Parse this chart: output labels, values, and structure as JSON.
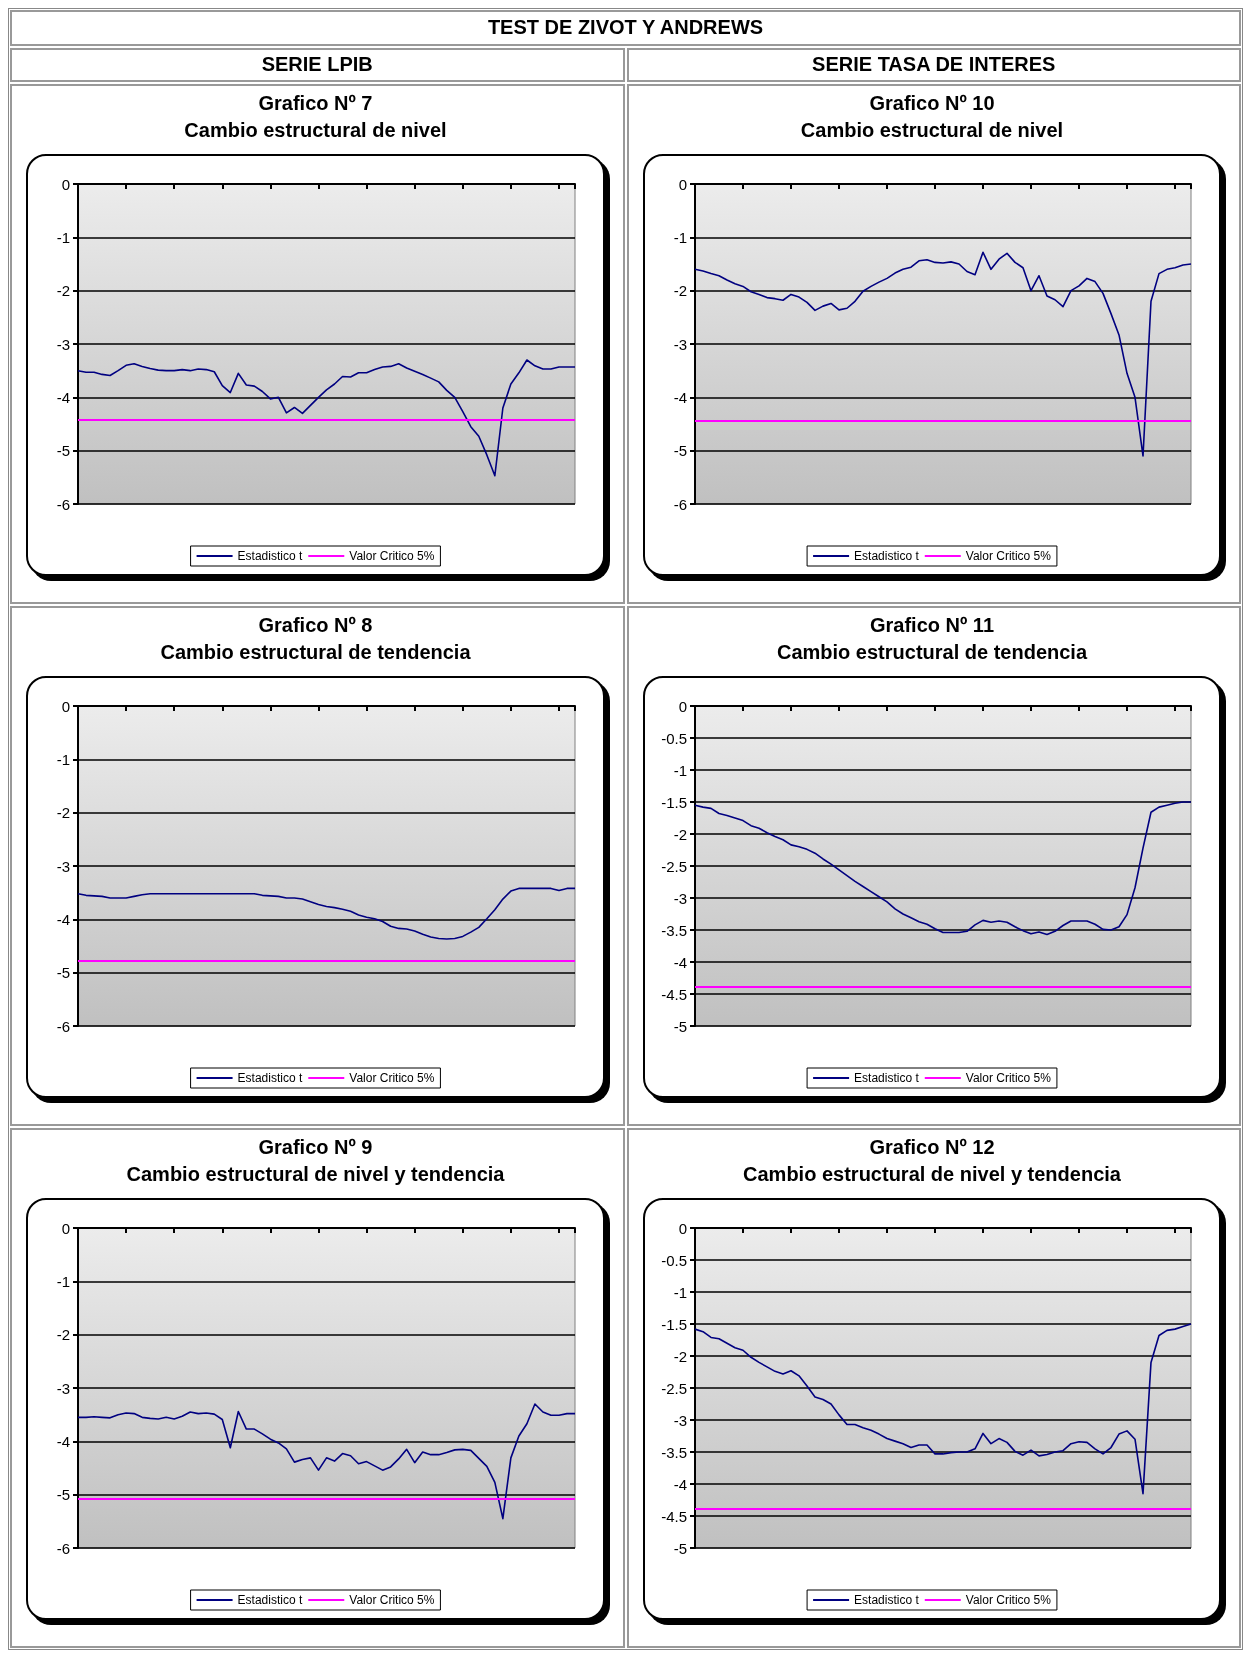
{
  "chart_data": [
    {
      "type": "line",
      "title": "Grafico Nº 7",
      "subtitle": "Cambio estructural de nivel",
      "annotations": [
        "TEST DE ZIVOT Y ANDREWS",
        "SERIE LPIB"
      ],
      "categories": [
        null,
        null,
        null,
        null,
        null,
        null,
        null,
        null,
        null,
        null,
        null,
        null,
        null,
        null,
        null,
        null,
        null,
        null,
        null,
        null,
        null,
        null,
        null,
        null,
        null,
        null,
        null,
        null,
        null,
        null,
        null,
        null,
        null,
        null,
        null,
        null,
        null,
        null,
        null,
        null,
        null,
        null,
        null,
        null,
        null,
        null,
        null,
        null,
        null,
        null,
        null,
        null,
        null,
        null,
        null,
        null,
        null,
        null,
        null,
        null,
        null,
        null,
        null
      ],
      "series": [
        {
          "name": "Estadistico t",
          "color": "#000080",
          "values": [
            -3.5,
            -3.53,
            -3.53,
            -3.57,
            -3.59,
            -3.5,
            -3.4,
            -3.37,
            -3.42,
            -3.46,
            -3.49,
            -3.5,
            -3.5,
            -3.48,
            -3.5,
            -3.47,
            -3.48,
            -3.52,
            -3.78,
            -3.91,
            -3.55,
            -3.77,
            -3.79,
            -3.89,
            -4.03,
            -4.0,
            -4.29,
            -4.19,
            -4.3,
            -4.15,
            -4.0,
            -3.86,
            -3.75,
            -3.61,
            -3.62,
            -3.54,
            -3.54,
            -3.48,
            -3.43,
            -3.42,
            -3.37,
            -3.45,
            -3.51,
            -3.57,
            -3.64,
            -3.71,
            -3.87,
            -4.0,
            -4.27,
            -4.55,
            -4.73,
            -5.08,
            -5.47,
            -4.2,
            -3.75,
            -3.54,
            -3.3,
            -3.41,
            -3.47,
            -3.47,
            -3.43,
            -3.43,
            -3.43
          ]
        }
      ],
      "ref_lines": [
        {
          "axis": "y",
          "value": -4.42,
          "label": "Valor Critico 5%",
          "color": "#ff00ff"
        }
      ],
      "ylim": [
        -6,
        0
      ],
      "yticks": [
        -6,
        -5,
        -4,
        -3,
        -2,
        -1,
        0
      ],
      "grid": "y",
      "legend": "bottom",
      "tick_labels": "y"
    },
    {
      "type": "line",
      "title": "Grafico Nº 10",
      "subtitle": "Cambio estructural de nivel",
      "annotations": [
        "SERIE TASA DE INTERES"
      ],
      "categories": [
        null,
        null,
        null,
        null,
        null,
        null,
        null,
        null,
        null,
        null,
        null,
        null,
        null,
        null,
        null,
        null,
        null,
        null,
        null,
        null,
        null,
        null,
        null,
        null,
        null,
        null,
        null,
        null,
        null,
        null,
        null,
        null,
        null,
        null,
        null,
        null,
        null,
        null,
        null,
        null,
        null,
        null,
        null,
        null,
        null,
        null,
        null,
        null,
        null,
        null,
        null,
        null,
        null,
        null,
        null,
        null,
        null,
        null,
        null,
        null,
        null,
        null,
        null
      ],
      "series": [
        {
          "name": "Estadistico t",
          "color": "#000080",
          "values": [
            -1.6,
            -1.63,
            -1.68,
            -1.72,
            -1.8,
            -1.87,
            -1.92,
            -2.02,
            -2.07,
            -2.13,
            -2.15,
            -2.18,
            -2.07,
            -2.12,
            -2.22,
            -2.37,
            -2.29,
            -2.24,
            -2.36,
            -2.33,
            -2.2,
            -2.01,
            -1.92,
            -1.84,
            -1.77,
            -1.67,
            -1.6,
            -1.56,
            -1.44,
            -1.42,
            -1.47,
            -1.48,
            -1.46,
            -1.5,
            -1.64,
            -1.7,
            -1.28,
            -1.6,
            -1.41,
            -1.3,
            -1.47,
            -1.57,
            -2.0,
            -1.72,
            -2.1,
            -2.17,
            -2.3,
            -2.0,
            -1.91,
            -1.77,
            -1.83,
            -2.05,
            -2.43,
            -2.83,
            -3.55,
            -4.0,
            -5.1,
            -2.2,
            -1.68,
            -1.6,
            -1.57,
            -1.52,
            -1.5
          ]
        }
      ],
      "ref_lines": [
        {
          "axis": "y",
          "value": -4.44,
          "label": "Valor Critico 5%",
          "color": "#ff00ff"
        }
      ],
      "ylim": [
        -6,
        0
      ],
      "yticks": [
        -6,
        -5,
        -4,
        -3,
        -2,
        -1,
        0
      ],
      "grid": "y",
      "legend": "bottom",
      "tick_labels": "y"
    },
    {
      "type": "line",
      "title": "Grafico Nº 8",
      "subtitle": "Cambio estructural de tendencia",
      "categories": [
        null,
        null,
        null,
        null,
        null,
        null,
        null,
        null,
        null,
        null,
        null,
        null,
        null,
        null,
        null,
        null,
        null,
        null,
        null,
        null,
        null,
        null,
        null,
        null,
        null,
        null,
        null,
        null,
        null,
        null,
        null,
        null,
        null,
        null,
        null,
        null,
        null,
        null,
        null,
        null,
        null,
        null,
        null,
        null,
        null,
        null,
        null,
        null,
        null,
        null,
        null,
        null,
        null,
        null,
        null,
        null,
        null,
        null,
        null,
        null,
        null,
        null,
        null
      ],
      "series": [
        {
          "name": "Estadistico t",
          "color": "#000080",
          "values": [
            -3.52,
            -3.55,
            -3.56,
            -3.57,
            -3.6,
            -3.6,
            -3.6,
            -3.57,
            -3.54,
            -3.52,
            -3.52,
            -3.52,
            -3.52,
            -3.52,
            -3.52,
            -3.52,
            -3.52,
            -3.52,
            -3.52,
            -3.52,
            -3.52,
            -3.52,
            -3.52,
            -3.55,
            -3.56,
            -3.57,
            -3.6,
            -3.6,
            -3.62,
            -3.67,
            -3.72,
            -3.76,
            -3.78,
            -3.81,
            -3.85,
            -3.92,
            -3.96,
            -3.99,
            -4.04,
            -4.13,
            -4.17,
            -4.18,
            -4.22,
            -4.28,
            -4.33,
            -4.36,
            -4.37,
            -4.36,
            -4.32,
            -4.24,
            -4.15,
            -3.99,
            -3.82,
            -3.62,
            -3.47,
            -3.42,
            -3.42,
            -3.42,
            -3.42,
            -3.42,
            -3.46,
            -3.42,
            -3.42
          ]
        }
      ],
      "ref_lines": [
        {
          "axis": "y",
          "value": -4.78,
          "label": "Valor Critico 5%",
          "color": "#ff00ff"
        }
      ],
      "ylim": [
        -6,
        0
      ],
      "yticks": [
        -6,
        -5,
        -4,
        -3,
        -2,
        -1,
        0
      ],
      "grid": "y",
      "legend": "bottom",
      "tick_labels": "y"
    },
    {
      "type": "line",
      "title": "Grafico Nº 11",
      "subtitle": "Cambio estructural de tendencia",
      "categories": [
        null,
        null,
        null,
        null,
        null,
        null,
        null,
        null,
        null,
        null,
        null,
        null,
        null,
        null,
        null,
        null,
        null,
        null,
        null,
        null,
        null,
        null,
        null,
        null,
        null,
        null,
        null,
        null,
        null,
        null,
        null,
        null,
        null,
        null,
        null,
        null,
        null,
        null,
        null,
        null,
        null,
        null,
        null,
        null,
        null,
        null,
        null,
        null,
        null,
        null,
        null,
        null,
        null,
        null,
        null,
        null,
        null,
        null,
        null,
        null,
        null,
        null,
        null
      ],
      "series": [
        {
          "name": "Estadistico t",
          "color": "#000080",
          "values": [
            -1.55,
            -1.58,
            -1.6,
            -1.68,
            -1.71,
            -1.75,
            -1.79,
            -1.87,
            -1.91,
            -1.98,
            -2.04,
            -2.09,
            -2.17,
            -2.2,
            -2.24,
            -2.3,
            -2.39,
            -2.47,
            -2.56,
            -2.65,
            -2.74,
            -2.82,
            -2.9,
            -2.98,
            -3.06,
            -3.17,
            -3.25,
            -3.31,
            -3.37,
            -3.41,
            -3.48,
            -3.54,
            -3.54,
            -3.54,
            -3.52,
            -3.42,
            -3.35,
            -3.38,
            -3.36,
            -3.38,
            -3.45,
            -3.51,
            -3.56,
            -3.53,
            -3.57,
            -3.52,
            -3.43,
            -3.36,
            -3.36,
            -3.36,
            -3.41,
            -3.49,
            -3.5,
            -3.45,
            -3.26,
            -2.84,
            -2.22,
            -1.66,
            -1.58,
            -1.55,
            -1.52,
            -1.5,
            -1.5
          ]
        }
      ],
      "ref_lines": [
        {
          "axis": "y",
          "value": -4.38,
          "label": "Valor Critico 5%",
          "color": "#ff00ff"
        }
      ],
      "ylim": [
        -5,
        0
      ],
      "yticks": [
        -5,
        -4.5,
        -4,
        -3.5,
        -3,
        -2.5,
        -2,
        -1.5,
        -1,
        -0.5,
        0
      ],
      "grid": "y",
      "legend": "bottom",
      "tick_labels": "y"
    },
    {
      "type": "line",
      "title": "Grafico Nº 9",
      "subtitle": "Cambio estructural de nivel y tendencia",
      "categories": [
        null,
        null,
        null,
        null,
        null,
        null,
        null,
        null,
        null,
        null,
        null,
        null,
        null,
        null,
        null,
        null,
        null,
        null,
        null,
        null,
        null,
        null,
        null,
        null,
        null,
        null,
        null,
        null,
        null,
        null,
        null,
        null,
        null,
        null,
        null,
        null,
        null,
        null,
        null,
        null,
        null,
        null,
        null,
        null,
        null,
        null,
        null,
        null,
        null,
        null,
        null,
        null,
        null,
        null,
        null,
        null,
        null,
        null,
        null,
        null,
        null,
        null,
        null
      ],
      "series": [
        {
          "name": "Estadistico t",
          "color": "#000080",
          "values": [
            -3.55,
            -3.55,
            -3.54,
            -3.55,
            -3.56,
            -3.5,
            -3.47,
            -3.48,
            -3.55,
            -3.57,
            -3.58,
            -3.55,
            -3.58,
            -3.53,
            -3.45,
            -3.48,
            -3.47,
            -3.49,
            -3.59,
            -4.12,
            -3.44,
            -3.77,
            -3.77,
            -3.86,
            -3.96,
            -4.03,
            -4.14,
            -4.39,
            -4.34,
            -4.31,
            -4.54,
            -4.31,
            -4.37,
            -4.23,
            -4.27,
            -4.42,
            -4.38,
            -4.46,
            -4.54,
            -4.48,
            -4.33,
            -4.15,
            -4.4,
            -4.2,
            -4.25,
            -4.25,
            -4.21,
            -4.16,
            -4.15,
            -4.17,
            -4.32,
            -4.47,
            -4.77,
            -5.45,
            -4.31,
            -3.9,
            -3.67,
            -3.3,
            -3.45,
            -3.51,
            -3.51,
            -3.48,
            -3.48
          ]
        }
      ],
      "ref_lines": [
        {
          "axis": "y",
          "value": -5.08,
          "label": "Valor Critico 5%",
          "color": "#ff00ff"
        }
      ],
      "ylim": [
        -6,
        0
      ],
      "yticks": [
        -6,
        -5,
        -4,
        -3,
        -2,
        -1,
        0
      ],
      "grid": "y",
      "legend": "bottom",
      "tick_labels": "y"
    },
    {
      "type": "line",
      "title": "Grafico Nº 12",
      "subtitle": "Cambio estructural de nivel y tendencia",
      "categories": [
        null,
        null,
        null,
        null,
        null,
        null,
        null,
        null,
        null,
        null,
        null,
        null,
        null,
        null,
        null,
        null,
        null,
        null,
        null,
        null,
        null,
        null,
        null,
        null,
        null,
        null,
        null,
        null,
        null,
        null,
        null,
        null,
        null,
        null,
        null,
        null,
        null,
        null,
        null,
        null,
        null,
        null,
        null,
        null,
        null,
        null,
        null,
        null,
        null,
        null,
        null,
        null,
        null,
        null,
        null,
        null,
        null,
        null,
        null,
        null,
        null,
        null,
        null
      ],
      "series": [
        {
          "name": "Estadistico t",
          "color": "#000080",
          "values": [
            -1.58,
            -1.62,
            -1.71,
            -1.73,
            -1.8,
            -1.87,
            -1.91,
            -2.02,
            -2.1,
            -2.17,
            -2.24,
            -2.28,
            -2.23,
            -2.31,
            -2.47,
            -2.64,
            -2.68,
            -2.75,
            -2.92,
            -3.07,
            -3.07,
            -3.12,
            -3.16,
            -3.22,
            -3.29,
            -3.33,
            -3.37,
            -3.43,
            -3.39,
            -3.39,
            -3.53,
            -3.53,
            -3.51,
            -3.5,
            -3.5,
            -3.45,
            -3.21,
            -3.37,
            -3.29,
            -3.35,
            -3.49,
            -3.55,
            -3.47,
            -3.56,
            -3.54,
            -3.5,
            -3.48,
            -3.37,
            -3.34,
            -3.35,
            -3.45,
            -3.53,
            -3.43,
            -3.22,
            -3.17,
            -3.3,
            -4.15,
            -2.1,
            -1.68,
            -1.6,
            -1.58,
            -1.54,
            -1.5
          ]
        }
      ],
      "ref_lines": [
        {
          "axis": "y",
          "value": -4.39,
          "label": "Valor Critico 5%",
          "color": "#ff00ff"
        }
      ],
      "ylim": [
        -5,
        0
      ],
      "yticks": [
        -5,
        -4.5,
        -4,
        -3.5,
        -3,
        -2.5,
        -2,
        -1.5,
        -1,
        -0.5,
        0
      ],
      "grid": "y",
      "legend": "bottom",
      "tick_labels": "y"
    }
  ]
}
